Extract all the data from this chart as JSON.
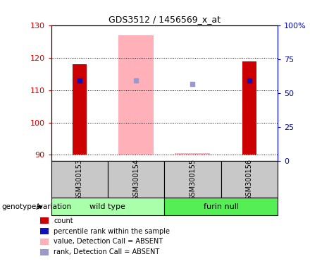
{
  "title": "GDS3512 / 1456569_x_at",
  "samples": [
    "GSM300153",
    "GSM300154",
    "GSM300155",
    "GSM300156"
  ],
  "ylim_left": [
    88,
    130
  ],
  "ylim_right": [
    0,
    100
  ],
  "yticks_left": [
    90,
    100,
    110,
    120,
    130
  ],
  "yticks_right": [
    0,
    25,
    50,
    75,
    100
  ],
  "ytick_labels_right": [
    "0",
    "25",
    "50",
    "75",
    "100%"
  ],
  "bar_bottom": 90,
  "red_bars": {
    "GSM300153": 118.0,
    "GSM300154": null,
    "GSM300155": null,
    "GSM300156": 119.0
  },
  "pink_bars": {
    "GSM300153": null,
    "GSM300154": 127.0,
    "GSM300155": 90.5,
    "GSM300156": null
  },
  "blue_squares": {
    "GSM300153": 113.0,
    "GSM300154": null,
    "GSM300155": null,
    "GSM300156": 113.0
  },
  "light_blue_squares": {
    "GSM300153": null,
    "GSM300154": 113.0,
    "GSM300155": 112.0,
    "GSM300156": null
  },
  "colors": {
    "red_bar": "#cc0000",
    "pink_bar": "#ffb0b8",
    "blue_square": "#1111bb",
    "light_blue_square": "#9999cc",
    "left_axis": "#cc0000",
    "right_axis": "#0000cc",
    "sample_box": "#c8c8c8",
    "wild_type": "#aaffaa",
    "furin_null": "#55ee55"
  },
  "legend_items": [
    {
      "label": "count",
      "color": "#cc0000"
    },
    {
      "label": "percentile rank within the sample",
      "color": "#1111bb"
    },
    {
      "label": "value, Detection Call = ABSENT",
      "color": "#ffb0b8"
    },
    {
      "label": "rank, Detection Call = ABSENT",
      "color": "#9999cc"
    }
  ],
  "genotype_label": "genotype/variation",
  "bar_width": 0.25,
  "group_positions": [
    [
      0,
      2,
      "wild type"
    ],
    [
      2,
      4,
      "furin null"
    ]
  ]
}
